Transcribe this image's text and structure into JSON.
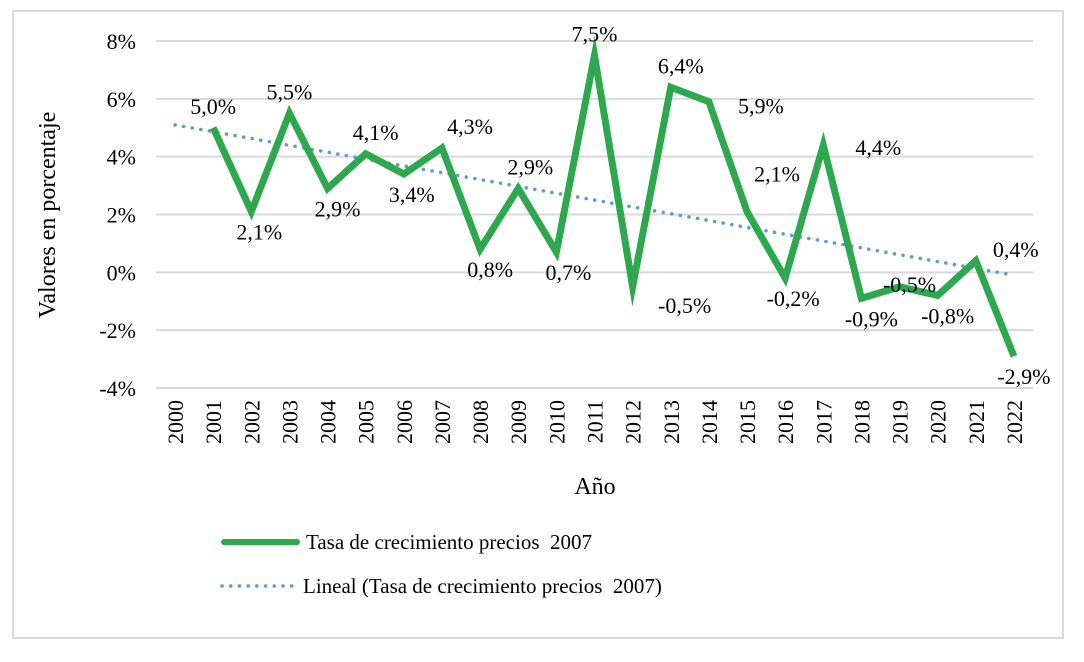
{
  "chart_data": {
    "type": "line",
    "title": "",
    "xlabel": "Año",
    "ylabel": "Valores en porcentaje",
    "categories": [
      "2000",
      "2001",
      "2002",
      "2003",
      "2004",
      "2005",
      "2006",
      "2007",
      "2008",
      "2009",
      "2010",
      "2011",
      "2012",
      "2013",
      "2014",
      "2015",
      "2016",
      "2017",
      "2018",
      "2019",
      "2020",
      "2021",
      "2022"
    ],
    "ylim": [
      -4,
      8
    ],
    "yticks": [
      -4,
      -2,
      0,
      2,
      4,
      6,
      8
    ],
    "ytick_labels": [
      "-4%",
      "-2%",
      "0%",
      "2%",
      "4%",
      "6%",
      "8%"
    ],
    "grid": true,
    "legend_position": "bottom",
    "series": [
      {
        "name": "Tasa de crecimiento precios  2007",
        "style": "solid",
        "color": "#2ea84f",
        "values": [
          null,
          5.0,
          2.1,
          5.5,
          2.9,
          4.1,
          3.4,
          4.3,
          0.8,
          2.9,
          0.7,
          7.5,
          -0.5,
          6.4,
          5.9,
          2.1,
          -0.2,
          4.4,
          -0.9,
          -0.5,
          -0.8,
          0.4,
          -2.9
        ],
        "data_labels": [
          null,
          "5,0%",
          "2,1%",
          "5,5%",
          "2,9%",
          "4,1%",
          "3,4%",
          "4,3%",
          "0,8%",
          "2,9%",
          "0,7%",
          "7,5%",
          "-0,5%",
          "6,4%",
          "5,9%",
          "2,1%",
          "-0,2%",
          "4,4%",
          "-0,9%",
          "-0,5%",
          "-0,8%",
          "0,4%",
          "-2,9%"
        ]
      },
      {
        "name": "Lineal (Tasa de crecimiento precios  2007)",
        "style": "dotted",
        "color": "#5b9bd5",
        "trend_start": 5.1,
        "trend_end": -0.1
      }
    ]
  }
}
